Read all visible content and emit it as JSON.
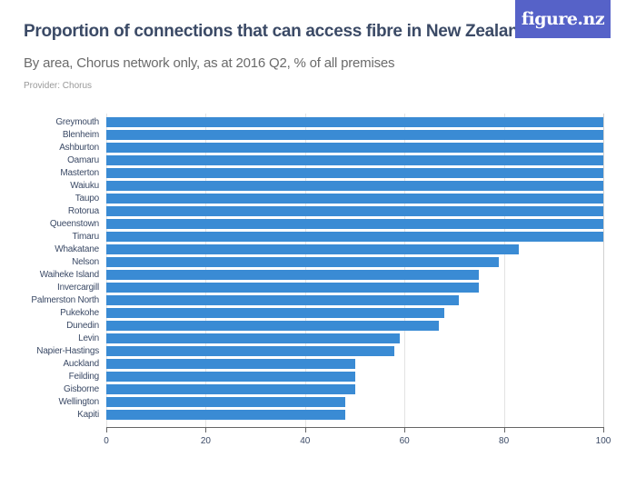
{
  "header": {
    "title": "Proportion of connections that can access fibre in New Zealand",
    "subtitle": "By area, Chorus network only, as at 2016 Q2, % of all premises",
    "provider": "Provider: Chorus",
    "logo": "figure.nz"
  },
  "colors": {
    "bar": "#3a8bd4",
    "title": "#3b4a66",
    "logo_bg": "#5662c8"
  },
  "chart_data": {
    "type": "bar",
    "orientation": "horizontal",
    "title": "Proportion of connections that can access fibre in New Zealand",
    "subtitle": "By area, Chorus network only, as at 2016 Q2, % of all premises",
    "xlabel": "",
    "ylabel": "",
    "xlim": [
      0,
      100
    ],
    "xticks": [
      0,
      20,
      40,
      60,
      80,
      100
    ],
    "grid": true,
    "legend": null,
    "categories": [
      "Greymouth",
      "Blenheim",
      "Ashburton",
      "Oamaru",
      "Masterton",
      "Waiuku",
      "Taupo",
      "Rotorua",
      "Queenstown",
      "Timaru",
      "Whakatane",
      "Nelson",
      "Waiheke Island",
      "Invercargill",
      "Palmerston North",
      "Pukekohe",
      "Dunedin",
      "Levin",
      "Napier-Hastings",
      "Auckland",
      "Feilding",
      "Gisborne",
      "Wellington",
      "Kapiti"
    ],
    "values": [
      100,
      100,
      100,
      100,
      100,
      100,
      100,
      100,
      100,
      100,
      83,
      79,
      75,
      75,
      71,
      68,
      67,
      59,
      58,
      50,
      50,
      50,
      48,
      48
    ]
  }
}
